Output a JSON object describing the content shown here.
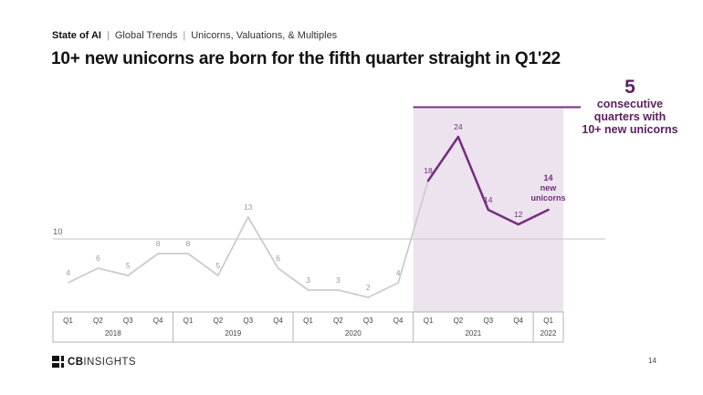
{
  "header": {
    "breadcrumb": {
      "brand": "State of AI",
      "separator": "|",
      "section": "Global Trends",
      "subsection": "Unicorns, Valuations, & Multiples"
    },
    "title": "10+ new unicorns are born for the fifth quarter straight in Q1'22"
  },
  "annotation": {
    "number": "5",
    "lines": [
      "consecutive",
      "quarters with",
      "10+ new unicorns"
    ]
  },
  "chart_data": {
    "type": "line",
    "title": "10+ new unicorns are born for the fifth quarter straight in Q1'22",
    "x_quarters": [
      "Q1",
      "Q2",
      "Q3",
      "Q4",
      "Q1",
      "Q2",
      "Q3",
      "Q4",
      "Q1",
      "Q2",
      "Q3",
      "Q4",
      "Q1",
      "Q2",
      "Q3",
      "Q4",
      "Q1"
    ],
    "year_groups": [
      {
        "label": "2018",
        "quarters": 4
      },
      {
        "label": "2019",
        "quarters": 4
      },
      {
        "label": "2020",
        "quarters": 4
      },
      {
        "label": "2021",
        "quarters": 4
      },
      {
        "label": "2022",
        "quarters": 1
      }
    ],
    "values": [
      4,
      6,
      5,
      8,
      8,
      5,
      13,
      6,
      3,
      3,
      2,
      4,
      18,
      24,
      14,
      12,
      14
    ],
    "ylim": [
      0,
      28
    ],
    "gridline_value": 10,
    "gridline_label": "10",
    "grid": "single-horizontal-line",
    "legend_position": "none",
    "highlight_start_index": 12,
    "highlighted_values": [
      18,
      24,
      14,
      12,
      14
    ],
    "last_point_label_lines": [
      "14",
      "new",
      "unicorns"
    ],
    "colors": {
      "base_line": "#cccccc",
      "base_label": "#9b9b9b",
      "highlight_line": "#762c80",
      "highlight_fill": "#ece3ee",
      "annotation_text": "#5c2161",
      "gridline": "#cfcfcf",
      "axis_border": "#b3b3b3",
      "axis_text": "#444444"
    }
  },
  "footer": {
    "logo_bold": "CB",
    "logo_light": "INSIGHTS",
    "page_number": "14"
  }
}
